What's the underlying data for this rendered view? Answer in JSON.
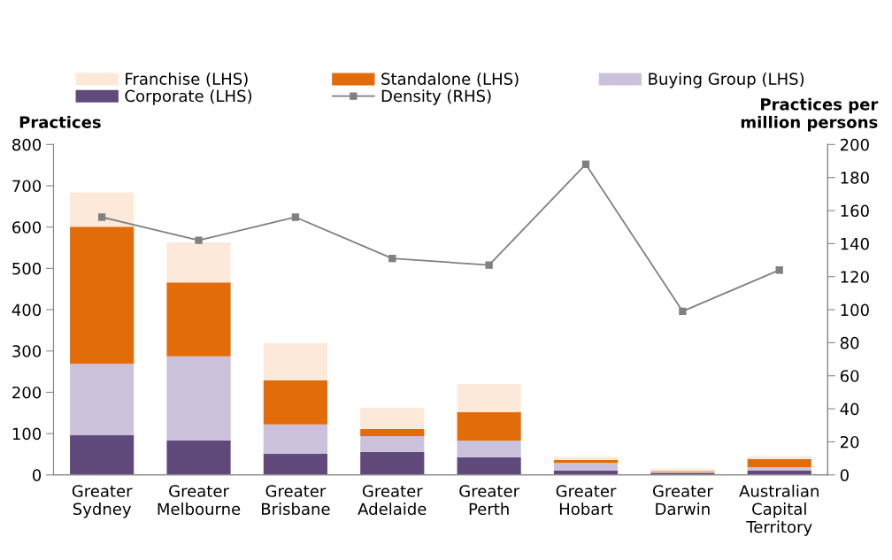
{
  "chart_data": {
    "type": "bar",
    "stacked": true,
    "categories": [
      "Greater\nSydney",
      "Greater\nMelbourne",
      "Greater\nBrisbane",
      "Greater\nAdelaide",
      "Greater\nPerth",
      "Greater\nHobart",
      "Greater\nDarwin",
      "Australian\nCapital\nTerritory"
    ],
    "series": [
      {
        "name": "Corporate (LHS)",
        "color": "#604a7b",
        "values": [
          96,
          83,
          51,
          56,
          43,
          11,
          5,
          10
        ]
      },
      {
        "name": "Buying Group (LHS)",
        "color": "#ccc1da",
        "values": [
          173,
          204,
          71,
          38,
          40,
          18,
          2,
          9
        ]
      },
      {
        "name": "Standalone (LHS)",
        "color": "#e36c0a",
        "values": [
          332,
          179,
          107,
          17,
          69,
          7,
          2,
          19
        ]
      },
      {
        "name": "Franchise (LHS)",
        "color": "#fde9da",
        "values": [
          83,
          97,
          90,
          52,
          68,
          8,
          6,
          7
        ]
      },
      {
        "name": "Density (RHS)",
        "type": "line",
        "axis": "y2",
        "color": "#808080",
        "marker": "square",
        "values": [
          156,
          142,
          156,
          131,
          127,
          188,
          99,
          124
        ]
      }
    ],
    "ylabel": "Practices",
    "y2label": "Practices per\nmillion persons",
    "ylim": [
      0,
      800
    ],
    "yticks": [
      0,
      100,
      200,
      300,
      400,
      500,
      600,
      700,
      800
    ],
    "y2lim": [
      0,
      200
    ],
    "y2ticks": [
      0,
      20,
      40,
      60,
      80,
      100,
      120,
      140,
      160,
      180,
      200
    ],
    "grid": false,
    "legend": "top"
  }
}
